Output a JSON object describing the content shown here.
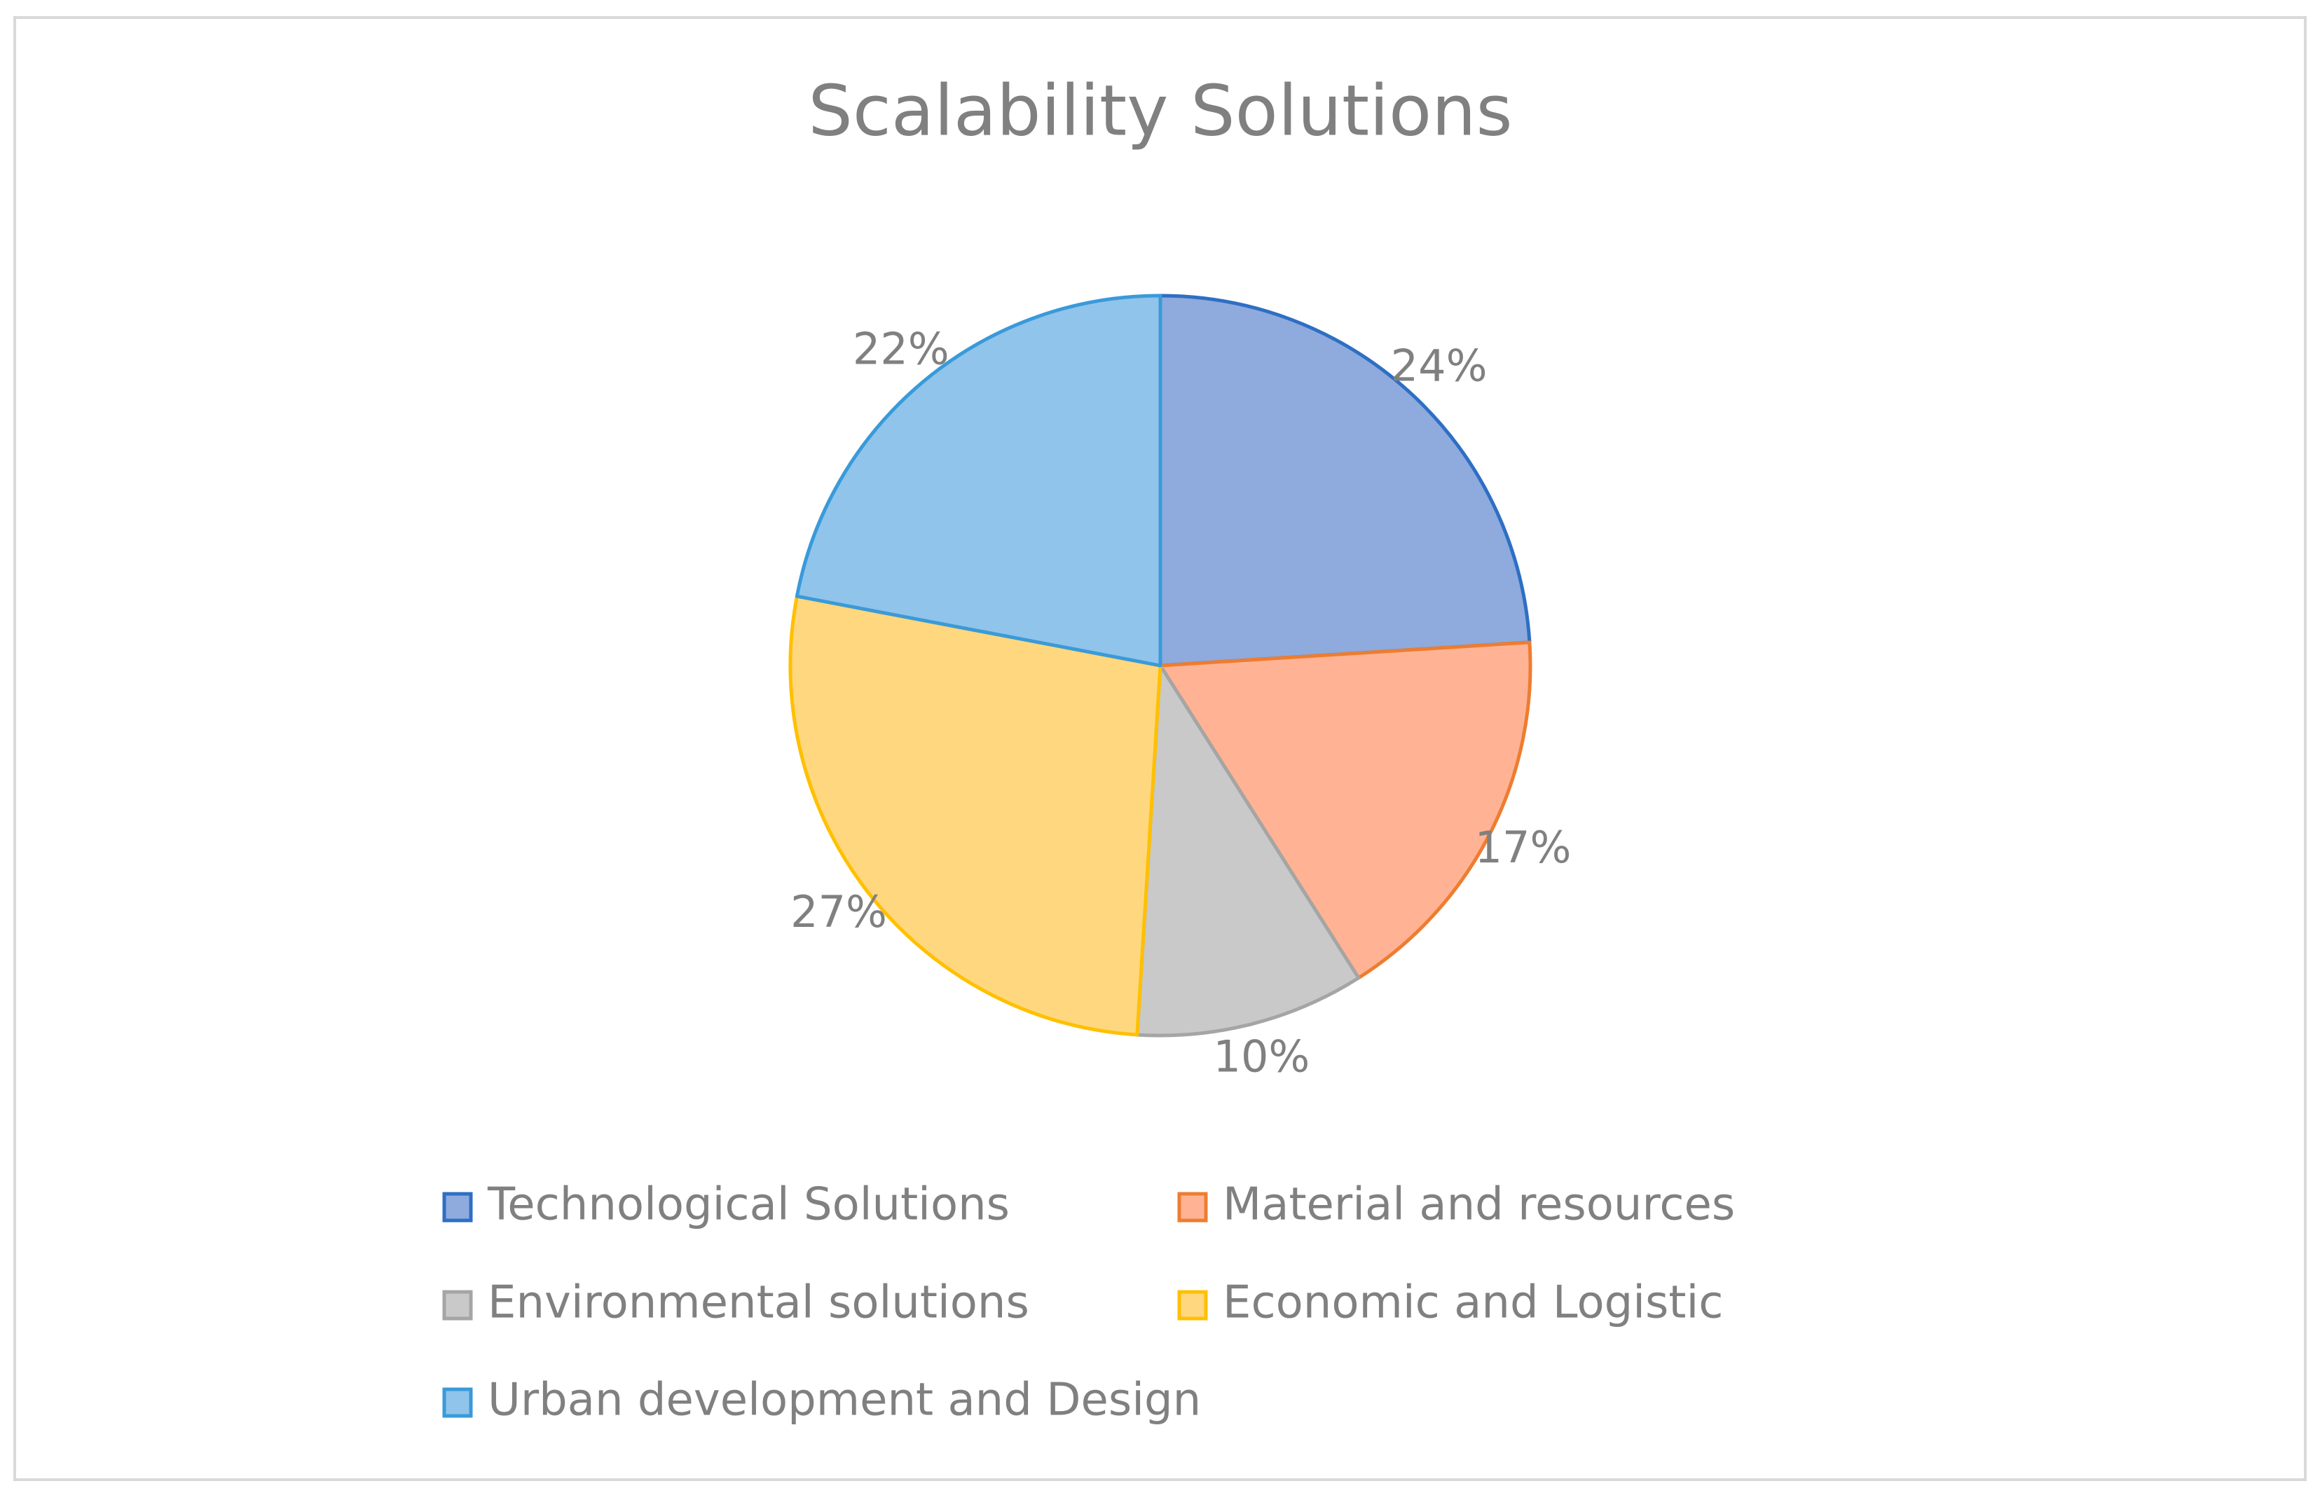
{
  "chart_data": {
    "type": "pie",
    "title": "Scalability Solutions",
    "categories": [
      "Technological Solutions",
      "Material and resources",
      "Environmental solutions",
      "Economic and Logistic",
      "Urban development and Design"
    ],
    "values": [
      24,
      17,
      10,
      27,
      22
    ],
    "value_labels": [
      "24%",
      "17%",
      "10%",
      "27%",
      "22%"
    ],
    "colors": [
      "#8faadc",
      "#ffb394",
      "#c9c9c9",
      "#ffd77f",
      "#90c4ea"
    ],
    "edge_colors": [
      "#2e6fc4",
      "#ed7d31",
      "#a5a5a5",
      "#ffc000",
      "#3a9ad9"
    ],
    "legend": "bottom"
  }
}
